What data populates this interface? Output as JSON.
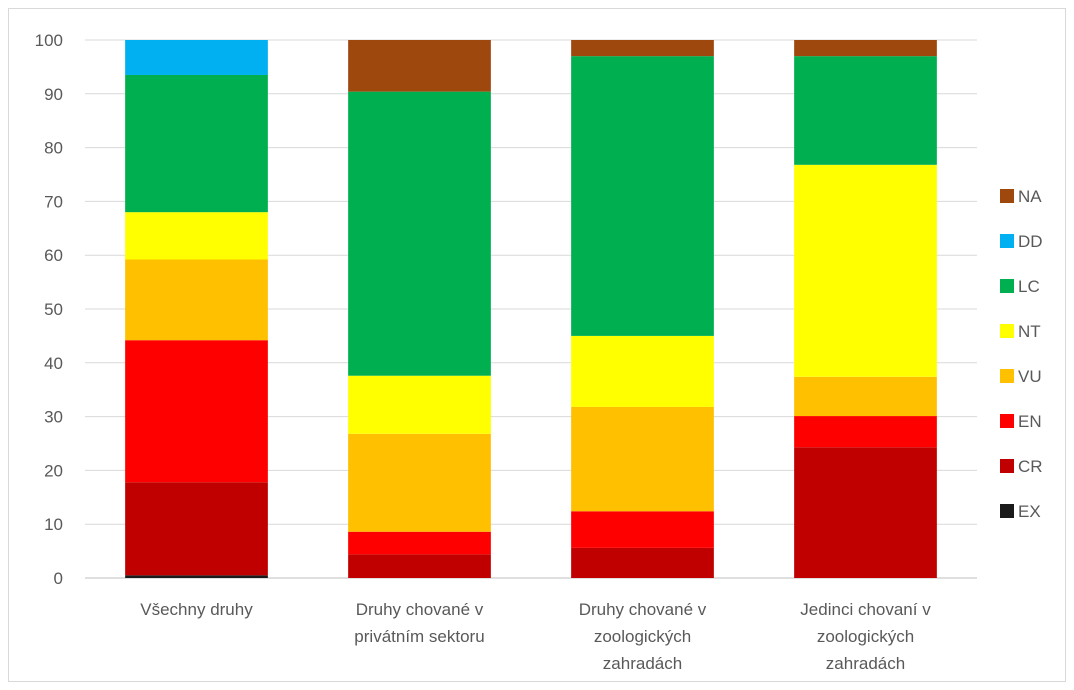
{
  "chart_data": {
    "type": "bar",
    "stacked": true,
    "categories": [
      [
        "Všechny druhy"
      ],
      [
        "Druhy chované v",
        "privátním sektoru"
      ],
      [
        "Druhy chované v",
        "zoologických",
        "zahradách"
      ],
      [
        "Jedinci chovaní v",
        "zoologických",
        "zahradách"
      ]
    ],
    "ylim": [
      0,
      100
    ],
    "yticks": [
      0,
      10,
      20,
      30,
      40,
      50,
      60,
      70,
      80,
      90,
      100
    ],
    "grid": true,
    "legend_position": "right",
    "series": [
      {
        "name": "EX",
        "color": "#1a1a1a",
        "values": [
          0.5,
          0,
          0,
          0
        ]
      },
      {
        "name": "CR",
        "color": "#c00000",
        "values": [
          17.3,
          4.4,
          5.6,
          24.3
        ]
      },
      {
        "name": "EN",
        "color": "#ff0000",
        "values": [
          26.4,
          4.2,
          6.8,
          5.8
        ]
      },
      {
        "name": "VU",
        "color": "#ffc000",
        "values": [
          15,
          18.2,
          19.4,
          7.3
        ]
      },
      {
        "name": "NT",
        "color": "#ffff00",
        "values": [
          8.8,
          10.8,
          13.2,
          39.4
        ]
      },
      {
        "name": "LC",
        "color": "#00b050",
        "values": [
          25.5,
          52.8,
          52,
          20.2
        ]
      },
      {
        "name": "DD",
        "color": "#00b0f0",
        "values": [
          6.5,
          0,
          0,
          0
        ]
      },
      {
        "name": "NA",
        "color": "#9e480e",
        "values": [
          0,
          9.6,
          3,
          3
        ]
      }
    ]
  }
}
